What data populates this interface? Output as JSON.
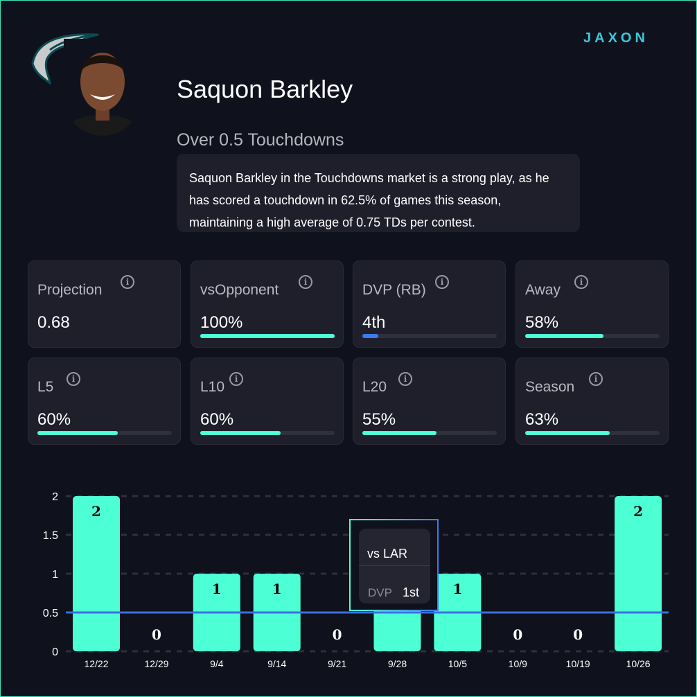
{
  "header": {
    "player_name": "Saquon Barkley",
    "market": "Over 0.5 Touchdowns",
    "brand": "JAXON",
    "description": "Saquon Barkley in the Touchdowns market is a strong play, as he has scored a touchdown in 62.5% of games this season, maintaining a high average of 0.75 TDs per contest."
  },
  "cards": [
    {
      "label": "Projection",
      "value": "0.68",
      "percent": null
    },
    {
      "label": "vsOpponent",
      "value": "100%",
      "percent": 100
    },
    {
      "label": "DVP (RB)",
      "value": "4th",
      "percent": 12,
      "color": "#3a7bf0"
    },
    {
      "label": "Away",
      "value": "58%",
      "percent": 58
    },
    {
      "label": "L5",
      "value": "60%",
      "percent": 60
    },
    {
      "label": "L10",
      "value": "60%",
      "percent": 60
    },
    {
      "label": "L20",
      "value": "55%",
      "percent": 55
    },
    {
      "label": "Season",
      "value": "63%",
      "percent": 63
    }
  ],
  "tooltip": {
    "opponent": "vs LAR",
    "dvp_label": "DVP",
    "dvp_value": "1st"
  },
  "chart_data": {
    "type": "bar",
    "categories": [
      "12/22",
      "12/29",
      "9/4",
      "9/14",
      "9/21",
      "9/28",
      "10/5",
      "10/9",
      "10/19",
      "10/26"
    ],
    "values": [
      2,
      0,
      1,
      1,
      0,
      1,
      1,
      0,
      0,
      2
    ],
    "ylim": [
      0,
      2
    ],
    "yticks": [
      "0",
      "0.5",
      "1",
      "1.5",
      "2"
    ],
    "threshold": 0.5,
    "bar_color": "#4dffd5",
    "threshold_color": "#3a6fe0"
  }
}
